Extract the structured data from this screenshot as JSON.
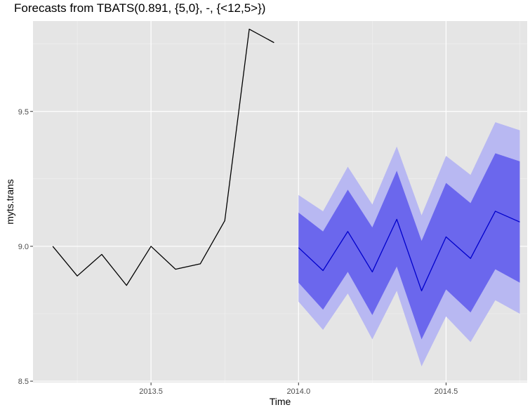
{
  "chart_data": {
    "type": "line",
    "title": "Forecasts from TBATS(0.891, {5,0}, -, {<12,5>})",
    "xlabel": "Time",
    "ylabel": "myts.trans",
    "xlim": [
      2013.1,
      2014.775
    ],
    "ylim": [
      8.495,
      9.835
    ],
    "x_ticks": [
      2013.5,
      2014.0,
      2014.5
    ],
    "x_tick_labels": [
      "2013.5",
      "2014.0",
      "2014.5"
    ],
    "y_ticks": [
      8.5,
      9.0,
      9.5
    ],
    "y_tick_labels": [
      "8.5",
      "9.0",
      "9.5"
    ],
    "grid": true,
    "background": "#e5e5e5",
    "colors": {
      "observed": "#000000",
      "forecast": "#0000cc",
      "band_95": "#b8b8f2",
      "band_80": "#6b67ed"
    },
    "series": [
      {
        "role": "observed",
        "x": [
          2013.167,
          2013.25,
          2013.333,
          2013.417,
          2013.5,
          2013.583,
          2013.667,
          2013.75,
          2013.833,
          2013.917
        ],
        "values": [
          9.0,
          8.89,
          8.97,
          8.855,
          9.0,
          8.915,
          8.935,
          9.095,
          9.805,
          9.755
        ]
      },
      {
        "role": "forecast",
        "x": [
          2014.0,
          2014.083,
          2014.167,
          2014.25,
          2014.333,
          2014.417,
          2014.5,
          2014.583,
          2014.667,
          2014.75
        ],
        "values": [
          8.995,
          8.91,
          9.055,
          8.905,
          9.1,
          8.835,
          9.035,
          8.955,
          9.13,
          9.09
        ],
        "lo80": [
          8.865,
          8.765,
          8.905,
          8.745,
          8.925,
          8.655,
          8.84,
          8.755,
          8.915,
          8.865
        ],
        "hi80": [
          9.125,
          9.055,
          9.21,
          9.07,
          9.28,
          9.02,
          9.235,
          9.16,
          9.345,
          9.315
        ],
        "lo95": [
          8.795,
          8.69,
          8.825,
          8.655,
          8.835,
          8.555,
          8.74,
          8.645,
          8.8,
          8.75
        ],
        "hi95": [
          9.19,
          9.13,
          9.295,
          9.155,
          9.37,
          9.115,
          9.335,
          9.265,
          9.46,
          9.43
        ]
      }
    ]
  }
}
